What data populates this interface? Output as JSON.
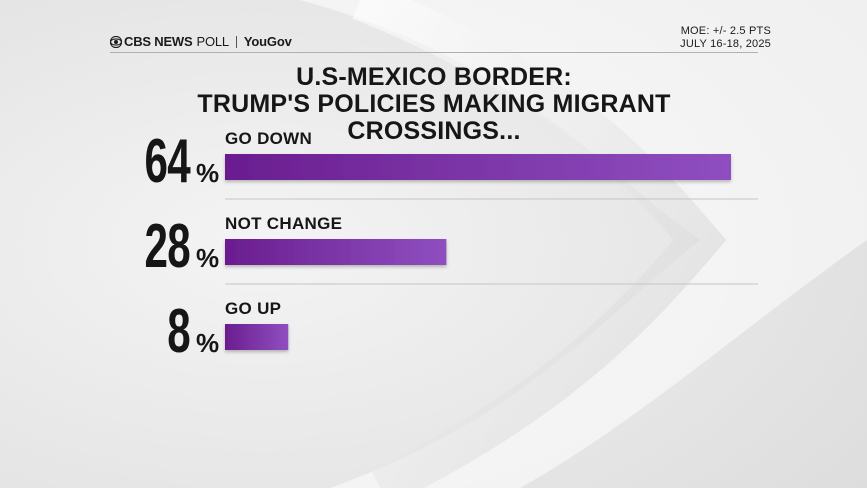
{
  "header": {
    "brand": "CBS NEWS",
    "poll": "POLL",
    "partner": "YouGov",
    "moe": "MOE: +/- 2.5 PTS",
    "dates": "JULY 16-18, 2025"
  },
  "colors": {
    "bar_start": "#6a1d8f",
    "bar_end": "#8f4fc0",
    "text": "#161616"
  },
  "chart_data": {
    "type": "bar",
    "title": "U.S-MEXICO BORDER:",
    "subtitle": "TRUMP'S POLICIES MAKING MIGRANT CROSSINGS...",
    "categories": [
      "GO DOWN",
      "NOT CHANGE",
      "GO UP"
    ],
    "values": [
      64,
      28,
      8
    ],
    "value_labels": [
      "64",
      "28",
      "8"
    ],
    "unit": "%",
    "xlim": [
      0,
      64
    ]
  }
}
